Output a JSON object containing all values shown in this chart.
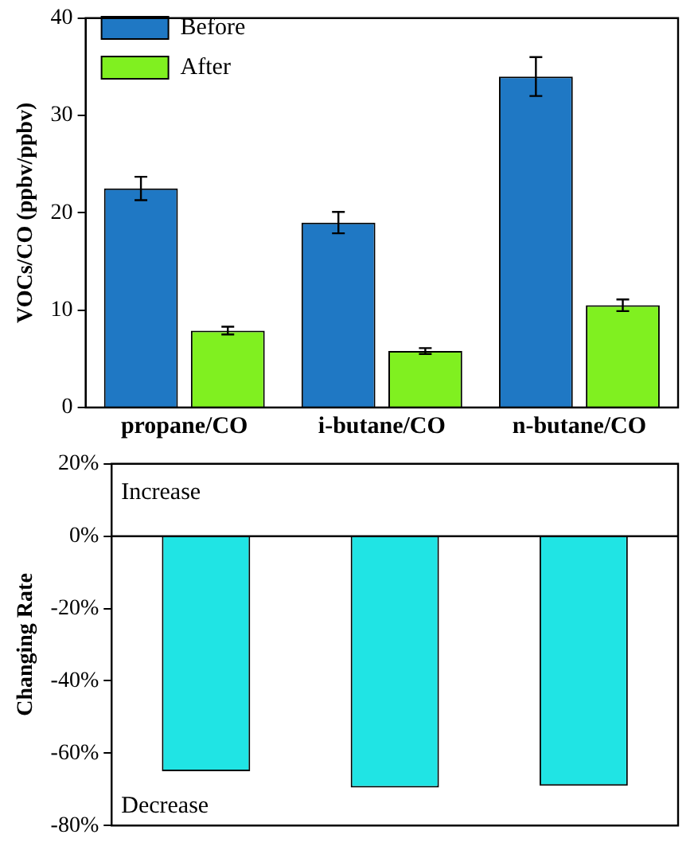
{
  "chart_data": [
    {
      "type": "bar",
      "ylabel": "VOCs/CO (ppbv/ppbv)",
      "categories": [
        "propane/CO",
        "i-butane/CO",
        "n-butane/CO"
      ],
      "series": [
        {
          "name": "Before",
          "color": "#1f78c4",
          "values": [
            22.5,
            19,
            34
          ],
          "errors": [
            1.2,
            1.1,
            2
          ]
        },
        {
          "name": "After",
          "color": "#80f020",
          "values": [
            7.9,
            5.8,
            10.5
          ],
          "errors": [
            0.4,
            0.3,
            0.6
          ]
        }
      ],
      "ylim": [
        0,
        40
      ],
      "yticks": [
        0,
        10,
        20,
        30,
        40
      ],
      "grid": false,
      "legend": "top left"
    },
    {
      "type": "bar",
      "ylabel": "Changing Rate",
      "categories": [
        null,
        null,
        null
      ],
      "values": [
        -65,
        -69.5,
        -69
      ],
      "color": "#20e4e4",
      "tick_labels": "y",
      "ylim": [
        -80,
        20
      ],
      "yticks": [
        {
          "value": -80,
          "label": "-80%"
        },
        {
          "value": -60,
          "label": "-60%"
        },
        {
          "value": -40,
          "label": "-40%"
        },
        {
          "value": -20,
          "label": "-20%"
        },
        {
          "value": 0,
          "label": "0%"
        },
        {
          "value": 20,
          "label": "20%"
        }
      ],
      "ref_lines": [
        {
          "axis": "y",
          "value": 0
        }
      ],
      "annotations": [
        "Increase",
        "Decrease"
      ],
      "grid": false,
      "legend": false
    }
  ]
}
